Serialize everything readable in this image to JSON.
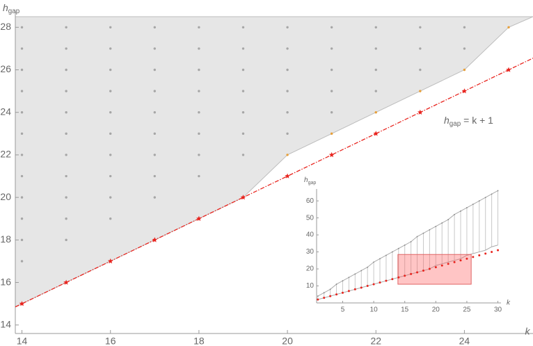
{
  "chart_data": [
    {
      "type": "scatter",
      "xlim": [
        13.85,
        25.55
      ],
      "ylim": [
        13.6,
        28.5
      ],
      "xticks": [
        14,
        16,
        18,
        20,
        22,
        24
      ],
      "yticks": [
        14,
        16,
        18,
        20,
        22,
        24,
        26,
        28
      ],
      "x_label": "k",
      "y_label": {
        "main": "h",
        "sub": "gap"
      },
      "region": {
        "color": "#e6e6e6",
        "x": [
          13.85,
          19,
          20,
          24,
          25,
          25.55
        ],
        "values": [
          14.85,
          20,
          22,
          26,
          28,
          28.5
        ]
      },
      "series": [
        {
          "color": "#a6a6a6",
          "x": [
            14,
            14,
            14,
            14,
            14,
            14,
            14,
            14,
            14,
            14,
            14,
            14,
            15,
            15,
            15,
            15,
            15,
            15,
            15,
            15,
            15,
            15,
            15,
            16,
            16,
            16,
            16,
            16,
            16,
            16,
            16,
            16,
            16,
            17,
            17,
            17,
            17,
            17,
            17,
            17,
            17,
            17,
            18,
            18,
            18,
            18,
            18,
            18,
            18,
            18,
            19,
            19,
            19,
            19,
            19,
            19,
            19,
            20,
            20,
            20,
            20,
            20,
            20,
            21,
            21,
            21,
            21,
            21,
            22,
            22,
            22,
            22,
            23,
            23,
            23,
            24,
            24
          ],
          "values": [
            17,
            18,
            19,
            20,
            21,
            22,
            23,
            24,
            25,
            26,
            27,
            28,
            18,
            19,
            20,
            21,
            22,
            23,
            24,
            25,
            26,
            27,
            28,
            19,
            20,
            21,
            22,
            23,
            24,
            25,
            26,
            27,
            28,
            20,
            21,
            22,
            23,
            24,
            25,
            26,
            27,
            28,
            21,
            22,
            23,
            24,
            25,
            26,
            27,
            28,
            22,
            23,
            24,
            25,
            26,
            27,
            28,
            23,
            24,
            25,
            26,
            27,
            28,
            24,
            25,
            26,
            27,
            28,
            25,
            26,
            27,
            28,
            26,
            27,
            28,
            27,
            28
          ]
        },
        {
          "color": "#e8a03a",
          "x": [
            20,
            21,
            22,
            23,
            24,
            25
          ],
          "values": [
            22,
            23,
            24,
            25,
            26,
            28
          ]
        },
        {
          "color": "#e8241e",
          "marker": "star",
          "x": [
            14,
            15,
            16,
            17,
            18,
            19,
            20,
            21,
            22,
            23,
            24,
            25
          ],
          "values": [
            15,
            16,
            17,
            18,
            19,
            20,
            21,
            22,
            23,
            24,
            25,
            26
          ]
        },
        {
          "color": "#e8241e",
          "line": true,
          "x": [
            13.85,
            25.55
          ],
          "values": [
            14.85,
            26.55
          ]
        }
      ],
      "annotation": {
        "main": "h",
        "sub": "gap",
        "rest": "= k + 1"
      }
    },
    {
      "type": "inset",
      "xlim": [
        0.8,
        30.5
      ],
      "ylim": [
        0,
        67
      ],
      "xticks": [
        5,
        10,
        15,
        20,
        25,
        30
      ],
      "yticks": [
        10,
        20,
        30,
        40,
        50,
        60
      ],
      "x_label": "k",
      "y_label": {
        "main": "h",
        "sub": "gap"
      },
      "x": [
        1,
        2,
        3,
        4,
        5,
        6,
        7,
        8,
        9,
        10,
        11,
        12,
        13,
        14,
        15,
        16,
        17,
        18,
        19,
        20,
        21,
        22,
        23,
        24,
        25,
        26,
        27,
        28,
        29,
        30
      ],
      "upper": [
        4,
        6,
        8,
        11,
        13,
        15,
        17,
        19,
        21,
        24,
        26,
        28,
        30,
        32,
        34,
        36,
        39,
        41,
        43,
        45,
        47,
        49,
        52,
        54,
        56,
        58,
        60,
        62,
        64,
        66
      ],
      "lower": [
        2,
        3,
        4,
        5,
        6,
        7,
        8,
        9,
        10,
        11,
        12,
        13,
        14,
        15,
        16,
        17,
        18,
        19,
        20,
        22,
        23,
        24,
        25,
        26,
        28,
        29,
        30,
        31,
        33,
        34
      ],
      "red": [
        2,
        3,
        4,
        5,
        6,
        7,
        8,
        9,
        10,
        11,
        12,
        13,
        14,
        15,
        16,
        17,
        18,
        19,
        20,
        21,
        22,
        23,
        24,
        25,
        26,
        27,
        28,
        29,
        30,
        31
      ],
      "highlight": {
        "x": [
          13.9,
          25.7
        ],
        "values": [
          11,
          28.5
        ]
      }
    }
  ]
}
